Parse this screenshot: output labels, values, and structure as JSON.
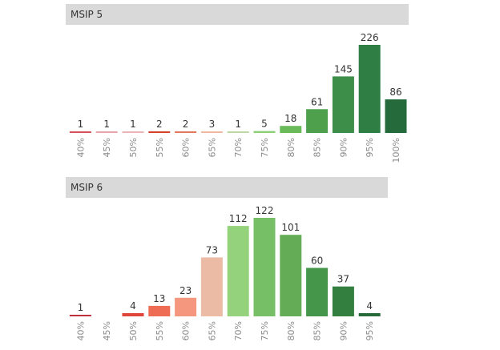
{
  "chart_data": [
    {
      "type": "bar",
      "title": "MSIP 5",
      "categories": [
        "40%",
        "45%",
        "50%",
        "55%",
        "60%",
        "65%",
        "70%",
        "75%",
        "80%",
        "85%",
        "90%",
        "95%",
        "100%"
      ],
      "values": [
        1,
        1,
        1,
        2,
        2,
        3,
        1,
        5,
        18,
        61,
        145,
        226,
        86
      ],
      "colors": [
        "#d5515b",
        "#e8a5a8",
        "#ebb5b4",
        "#d6432c",
        "#e2795f",
        "#efb9a4",
        "#bcd9a5",
        "#8bcf77",
        "#6aba5a",
        "#4ea04d",
        "#3d8e49",
        "#2f7e43",
        "#246a3b"
      ],
      "xlabel": "",
      "ylabel": "",
      "ylim": [
        0,
        226
      ],
      "grid": false
    },
    {
      "type": "bar",
      "title": "MSIP 6",
      "categories": [
        "40%",
        "45%",
        "50%",
        "55%",
        "60%",
        "65%",
        "70%",
        "75%",
        "80%",
        "85%",
        "90%",
        "95%"
      ],
      "values": [
        1,
        0,
        4,
        13,
        23,
        73,
        112,
        122,
        101,
        60,
        37,
        4
      ],
      "colors": [
        "#c22f3f",
        "#ffffff",
        "#e0453a",
        "#ee6c53",
        "#f4977e",
        "#ebbba5",
        "#95d27c",
        "#76bf66",
        "#64ad56",
        "#45964a",
        "#337f40",
        "#246a3b"
      ],
      "xlabel": "",
      "ylabel": "",
      "ylim": [
        0,
        122
      ],
      "grid": false
    }
  ]
}
